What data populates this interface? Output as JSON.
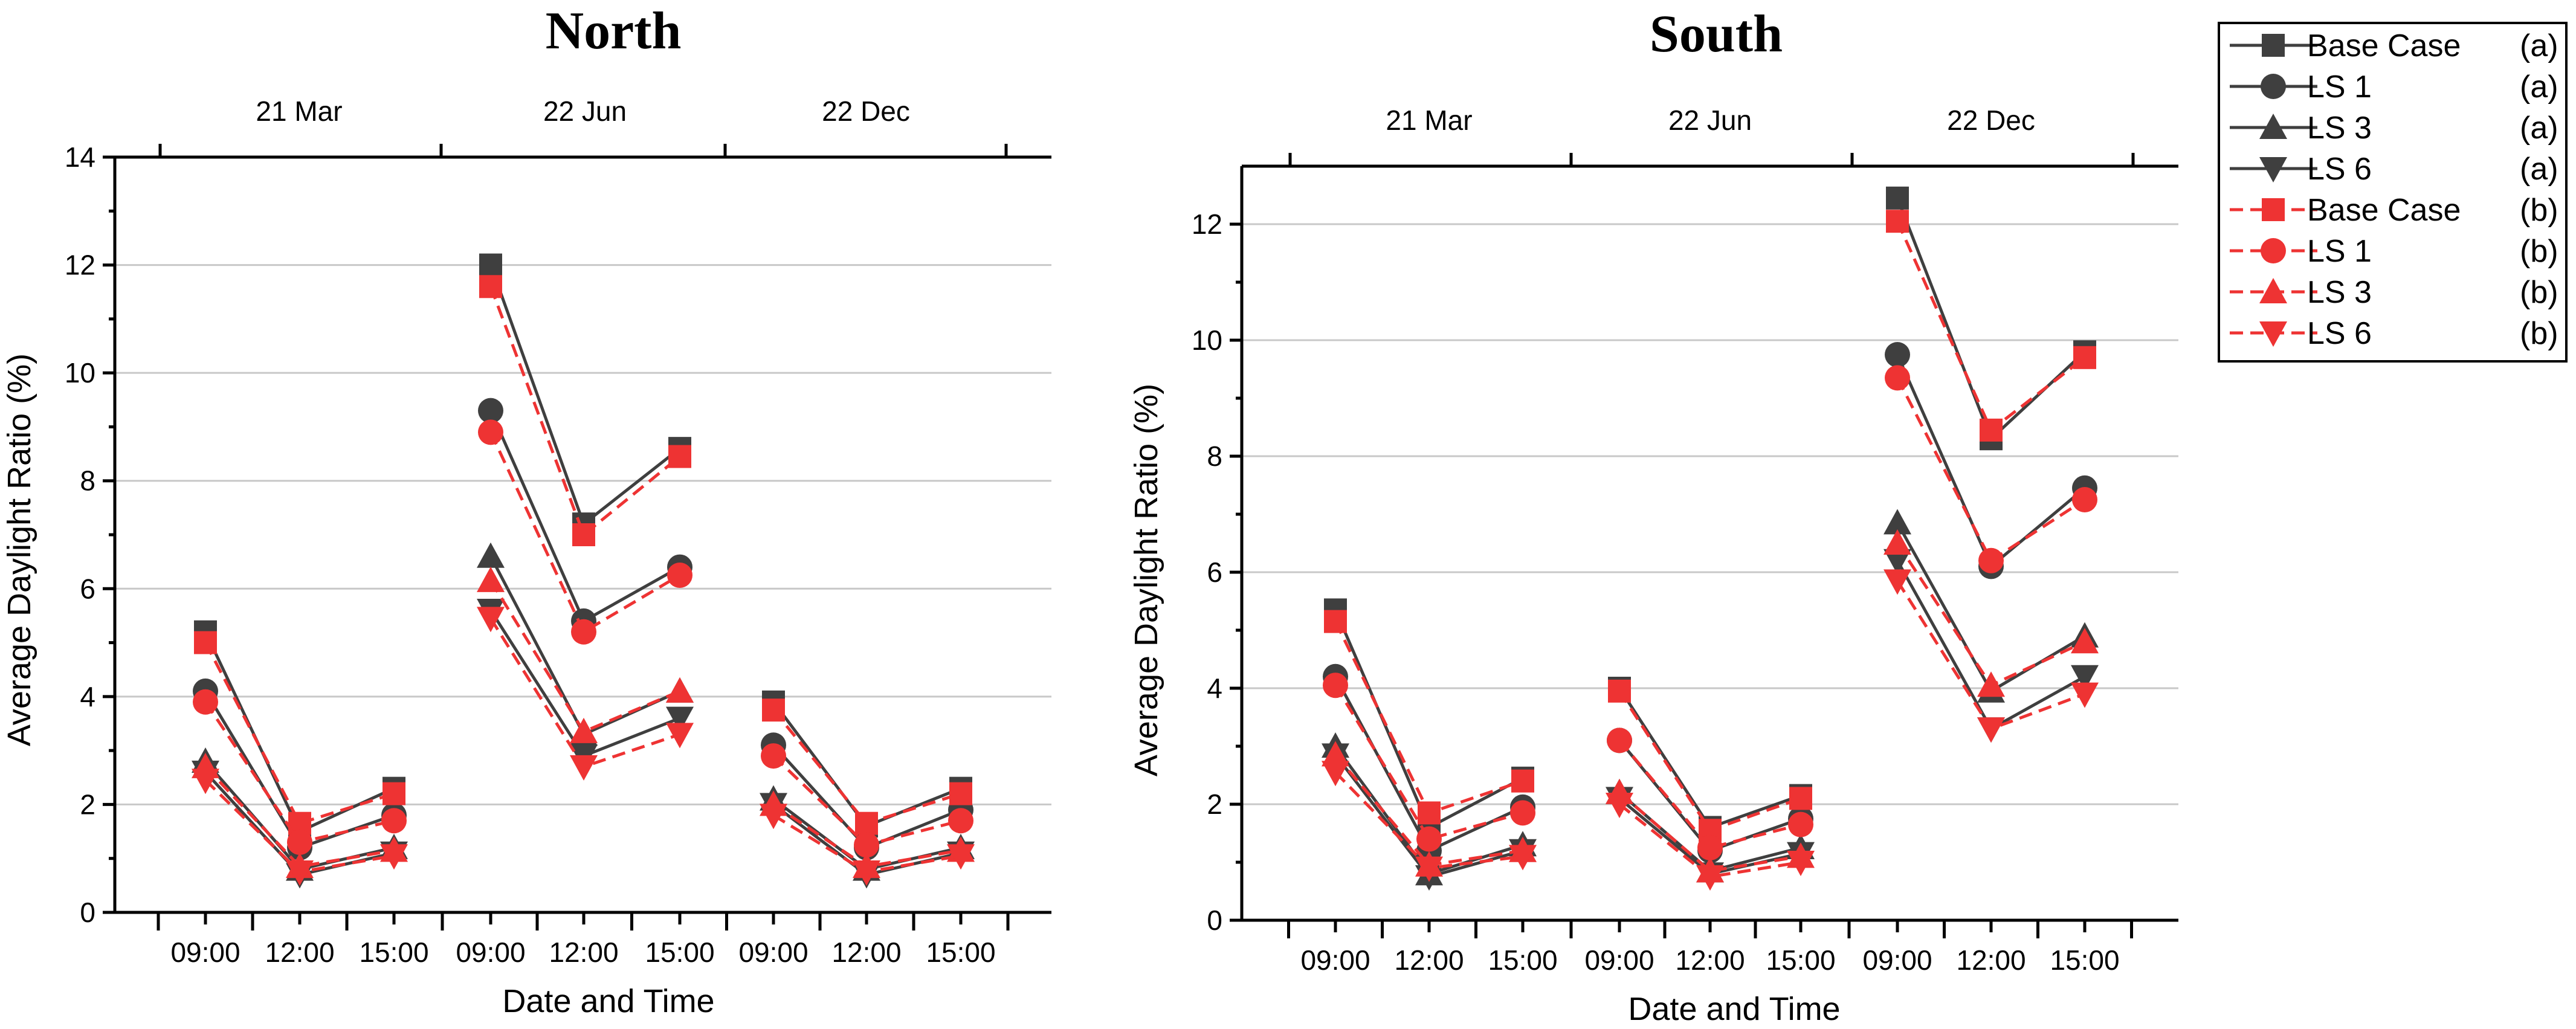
{
  "chart_data": [
    {
      "type": "line",
      "title": "North",
      "xlabel": "Date and Time",
      "ylabel": "Average Daylight Ratio (%)",
      "ylim": [
        0,
        14
      ],
      "yticks": [
        0,
        2,
        4,
        6,
        8,
        10,
        12,
        14
      ],
      "groups": [
        "21 Mar",
        "22 Jun",
        "22 Dec"
      ],
      "categories": [
        "09:00",
        "12:00",
        "15:00",
        "09:00",
        "12:00",
        "15:00",
        "09:00",
        "12:00",
        "15:00"
      ],
      "series": [
        {
          "name": "Base Case",
          "variant": "(a)",
          "marker": "square",
          "values": [
            5.2,
            1.5,
            2.3,
            12.0,
            7.2,
            8.6,
            3.9,
            1.6,
            2.3
          ]
        },
        {
          "name": "LS 1",
          "variant": "(a)",
          "marker": "circle",
          "values": [
            4.1,
            1.2,
            1.8,
            9.3,
            5.4,
            6.4,
            3.1,
            1.2,
            1.9
          ]
        },
        {
          "name": "LS 3",
          "variant": "(a)",
          "marker": "triangle",
          "values": [
            2.8,
            0.8,
            1.2,
            6.6,
            3.3,
            4.1,
            2.1,
            0.8,
            1.2
          ]
        },
        {
          "name": "LS 6",
          "variant": "(a)",
          "marker": "tri-down",
          "values": [
            2.6,
            0.7,
            1.1,
            5.6,
            2.9,
            3.6,
            2.0,
            0.7,
            1.1
          ]
        },
        {
          "name": "Base Case",
          "variant": "(b)",
          "marker": "square",
          "values": [
            5.0,
            1.65,
            2.2,
            11.6,
            7.0,
            8.45,
            3.75,
            1.65,
            2.2
          ]
        },
        {
          "name": "LS 1",
          "variant": "(b)",
          "marker": "circle",
          "values": [
            3.9,
            1.3,
            1.7,
            8.9,
            5.2,
            6.25,
            2.9,
            1.25,
            1.7
          ]
        },
        {
          "name": "LS 3",
          "variant": "(b)",
          "marker": "triangle",
          "values": [
            2.7,
            0.85,
            1.15,
            6.15,
            3.35,
            4.1,
            2.0,
            0.85,
            1.15
          ]
        },
        {
          "name": "LS 6",
          "variant": "(b)",
          "marker": "tri-down",
          "values": [
            2.45,
            0.75,
            1.05,
            5.45,
            2.7,
            3.3,
            1.8,
            0.75,
            1.05
          ]
        }
      ]
    },
    {
      "type": "line",
      "title": "South",
      "xlabel": "Date and Time",
      "ylabel": "Average Daylight Ratio (%)",
      "ylim": [
        0,
        13
      ],
      "yticks": [
        0,
        2,
        4,
        6,
        8,
        10,
        12
      ],
      "groups": [
        "21 Mar",
        "22 Jun",
        "22 Dec"
      ],
      "categories": [
        "09:00",
        "12:00",
        "15:00",
        "09:00",
        "12:00",
        "15:00",
        "09:00",
        "12:00",
        "15:00"
      ],
      "series": [
        {
          "name": "Base Case",
          "variant": "(a)",
          "marker": "square",
          "values": [
            5.35,
            1.6,
            2.45,
            4.0,
            1.6,
            2.15,
            12.45,
            8.3,
            9.8
          ]
        },
        {
          "name": "LS 1",
          "variant": "(a)",
          "marker": "circle",
          "values": [
            4.2,
            1.2,
            1.95,
            3.1,
            1.2,
            1.75,
            9.75,
            6.1,
            7.45
          ]
        },
        {
          "name": "LS 3",
          "variant": "(a)",
          "marker": "triangle",
          "values": [
            3.0,
            0.8,
            1.3,
            2.2,
            0.85,
            1.25,
            6.85,
            3.95,
            4.9
          ]
        },
        {
          "name": "LS 6",
          "variant": "(a)",
          "marker": "tri-down",
          "values": [
            2.85,
            0.75,
            1.2,
            2.1,
            0.8,
            1.15,
            6.2,
            3.3,
            4.2
          ]
        },
        {
          "name": "Base Case",
          "variant": "(b)",
          "marker": "square",
          "values": [
            5.15,
            1.85,
            2.4,
            3.95,
            1.55,
            2.1,
            12.05,
            8.45,
            9.7
          ]
        },
        {
          "name": "LS 1",
          "variant": "(b)",
          "marker": "circle",
          "values": [
            4.05,
            1.4,
            1.85,
            3.1,
            1.25,
            1.65,
            9.35,
            6.2,
            7.25
          ]
        },
        {
          "name": "LS 3",
          "variant": "(b)",
          "marker": "triangle",
          "values": [
            2.85,
            0.95,
            1.2,
            2.2,
            0.85,
            1.1,
            6.5,
            4.05,
            4.8
          ]
        },
        {
          "name": "LS 6",
          "variant": "(b)",
          "marker": "tri-down",
          "values": [
            2.55,
            0.9,
            1.1,
            2.0,
            0.75,
            1.0,
            5.85,
            3.3,
            3.9
          ]
        }
      ]
    }
  ],
  "style": {
    "color_a": "#3f3f3f",
    "color_b": "#ee3333"
  }
}
